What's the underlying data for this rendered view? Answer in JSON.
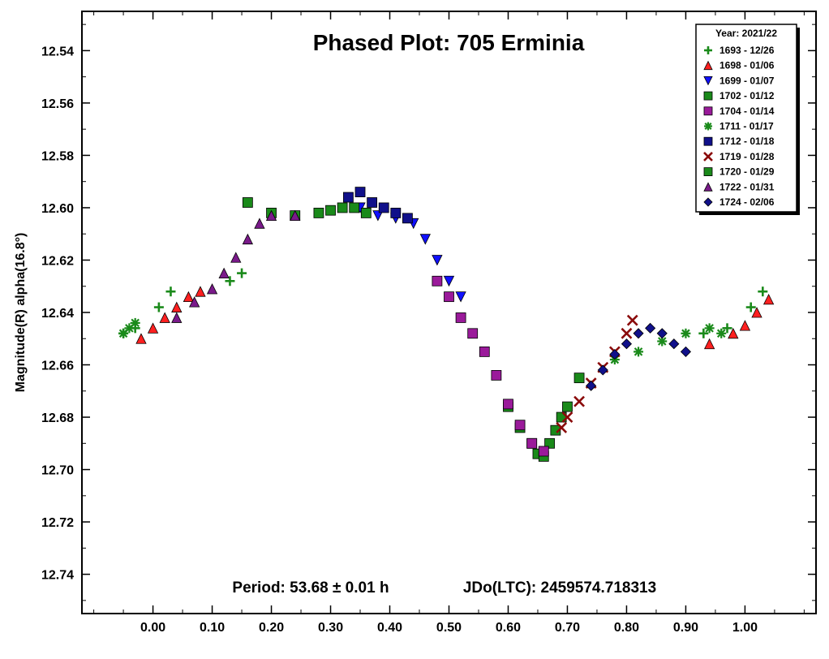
{
  "chart_data": {
    "type": "scatter",
    "title": "Phased Plot: 705 Erminia",
    "xlabel": "",
    "ylabel": "Magnitude(R) alpha(16.8°)",
    "xlim": [
      -0.12,
      1.12
    ],
    "ylim": [
      12.755,
      12.525
    ],
    "y_inverted": true,
    "x_ticks": [
      0.0,
      0.1,
      0.2,
      0.3,
      0.4,
      0.5,
      0.6,
      0.7,
      0.8,
      0.9,
      1.0
    ],
    "x_tick_labels": [
      "0.00",
      "0.10",
      "0.20",
      "0.30",
      "0.40",
      "0.50",
      "0.60",
      "0.70",
      "0.80",
      "0.90",
      "1.00"
    ],
    "y_ticks": [
      12.54,
      12.56,
      12.58,
      12.6,
      12.62,
      12.64,
      12.66,
      12.68,
      12.7,
      12.72,
      12.74
    ],
    "y_tick_labels": [
      "12.54",
      "12.56",
      "12.58",
      "12.60",
      "12.62",
      "12.64",
      "12.66",
      "12.68",
      "12.70",
      "12.72",
      "12.74"
    ],
    "grid": false,
    "legend_position": "top-right",
    "legend_title": "Year: 2021/22",
    "annotation_period": "Period: 53.68 ± 0.01 h",
    "annotation_jdo": "JDo(LTC): 2459574.718313",
    "series": [
      {
        "name": "1693 - 12/26",
        "marker": "plus",
        "color": "#1a8a1a",
        "x": [
          -0.05,
          -0.03,
          0.01,
          0.03,
          0.13,
          0.15,
          0.93,
          0.97,
          1.01,
          1.03
        ],
        "y": [
          12.648,
          12.646,
          12.638,
          12.632,
          12.628,
          12.625,
          12.648,
          12.646,
          12.638,
          12.632
        ]
      },
      {
        "name": "1698 - 01/06",
        "marker": "triangle-up",
        "color": "#ff2020",
        "x": [
          -0.02,
          0.0,
          0.02,
          0.04,
          0.06,
          0.08,
          0.94,
          0.98,
          1.0,
          1.02,
          1.04
        ],
        "y": [
          12.65,
          12.646,
          12.642,
          12.638,
          12.634,
          12.632,
          12.652,
          12.648,
          12.645,
          12.64,
          12.635
        ]
      },
      {
        "name": "1699 - 01/07",
        "marker": "triangle-down",
        "color": "#1010ff",
        "x": [
          0.35,
          0.38,
          0.41,
          0.44,
          0.46,
          0.48,
          0.5,
          0.52
        ],
        "y": [
          12.6,
          12.603,
          12.604,
          12.606,
          12.612,
          12.62,
          12.628,
          12.634
        ]
      },
      {
        "name": "1702 - 01/12",
        "marker": "square",
        "color": "#1a8a1a",
        "x": [
          0.6,
          0.62,
          0.64,
          0.65,
          0.66,
          0.67,
          0.68,
          0.69,
          0.7,
          0.72
        ],
        "y": [
          12.676,
          12.684,
          12.69,
          12.694,
          12.695,
          12.69,
          12.685,
          12.68,
          12.676,
          12.665
        ]
      },
      {
        "name": "1704 - 01/14",
        "marker": "square",
        "color": "#9a1a9a",
        "x": [
          0.48,
          0.5,
          0.52,
          0.54,
          0.56,
          0.58,
          0.6,
          0.62,
          0.64,
          0.66
        ],
        "y": [
          12.628,
          12.634,
          12.642,
          12.648,
          12.655,
          12.664,
          12.675,
          12.683,
          12.69,
          12.693
        ]
      },
      {
        "name": "1711 - 01/17",
        "marker": "asterisk",
        "color": "#1a8a1a",
        "x": [
          -0.05,
          -0.04,
          -0.03,
          0.78,
          0.82,
          0.86,
          0.9,
          0.94,
          0.96
        ],
        "y": [
          12.648,
          12.646,
          12.644,
          12.658,
          12.655,
          12.651,
          12.648,
          12.646,
          12.648
        ]
      },
      {
        "name": "1712 - 01/18",
        "marker": "square",
        "color": "#10108a",
        "x": [
          0.33,
          0.35,
          0.37,
          0.39,
          0.41,
          0.43
        ],
        "y": [
          12.596,
          12.594,
          12.598,
          12.6,
          12.602,
          12.604
        ]
      },
      {
        "name": "1719 - 01/28",
        "marker": "x",
        "color": "#8a0a0a",
        "x": [
          0.69,
          0.7,
          0.72,
          0.74,
          0.76,
          0.78,
          0.8,
          0.81
        ],
        "y": [
          12.684,
          12.68,
          12.674,
          12.667,
          12.661,
          12.655,
          12.648,
          12.643
        ]
      },
      {
        "name": "1720 - 01/29",
        "marker": "square",
        "color": "#1a8a1a",
        "x": [
          0.16,
          0.2,
          0.24,
          0.28,
          0.3,
          0.32,
          0.34,
          0.36
        ],
        "y": [
          12.598,
          12.602,
          12.603,
          12.602,
          12.601,
          12.6,
          12.6,
          12.602
        ]
      },
      {
        "name": "1722 - 01/31",
        "marker": "triangle-up",
        "color": "#7a1a8a",
        "x": [
          0.04,
          0.07,
          0.1,
          0.12,
          0.14,
          0.16,
          0.18,
          0.2,
          0.24
        ],
        "y": [
          12.642,
          12.636,
          12.631,
          12.625,
          12.619,
          12.612,
          12.606,
          12.603,
          12.603
        ]
      },
      {
        "name": "1724 - 02/06",
        "marker": "diamond",
        "color": "#10108a",
        "x": [
          0.74,
          0.76,
          0.78,
          0.8,
          0.82,
          0.84,
          0.86,
          0.88,
          0.9
        ],
        "y": [
          12.668,
          12.662,
          12.656,
          12.652,
          12.648,
          12.646,
          12.648,
          12.652,
          12.655
        ]
      }
    ]
  }
}
